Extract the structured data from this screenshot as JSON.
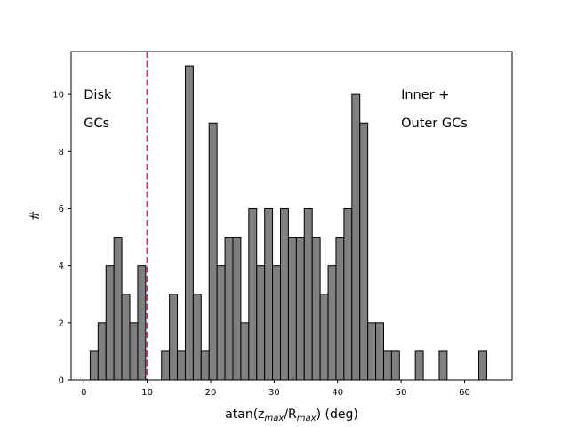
{
  "chart_data": {
    "type": "bar",
    "subtype": "histogram",
    "title": "",
    "xlabel_parts": [
      {
        "text": "atan(z",
        "sub": false
      },
      {
        "text": "max",
        "sub": true
      },
      {
        "text": "/R",
        "sub": false
      },
      {
        "text": "max",
        "sub": true
      },
      {
        "text": ") (deg)",
        "sub": false
      }
    ],
    "ylabel": "#",
    "xlim": [
      -2,
      67.5
    ],
    "ylim": [
      0,
      11.5
    ],
    "xticks": [
      0,
      10,
      20,
      30,
      40,
      50,
      60
    ],
    "yticks": [
      0,
      2,
      4,
      6,
      8,
      10
    ],
    "bin_width": 1.25,
    "bin_start": 1.0,
    "bar_values": [
      1,
      2,
      4,
      5,
      3,
      2,
      4,
      0,
      0,
      1,
      3,
      1,
      11,
      3,
      1,
      9,
      4,
      5,
      5,
      2,
      6,
      4,
      6,
      4,
      6,
      5,
      5,
      6,
      5,
      3,
      4,
      5,
      6,
      10,
      9,
      2,
      2,
      1,
      1,
      0,
      0,
      1,
      0,
      0,
      1,
      0,
      0,
      0,
      0,
      1
    ],
    "bar_color": "#808080",
    "edge_color": "#000000",
    "grid": false,
    "vline": {
      "x": 10,
      "color": "#f0238c",
      "style": "dashed"
    },
    "annotations": [
      {
        "text": "Disk",
        "x": 0,
        "y": 10
      },
      {
        "text": "GCs",
        "x": 0,
        "y": 9
      },
      {
        "text": "Inner +",
        "x": 50,
        "y": 10
      },
      {
        "text": "Outer GCs",
        "x": 50,
        "y": 9
      }
    ]
  }
}
